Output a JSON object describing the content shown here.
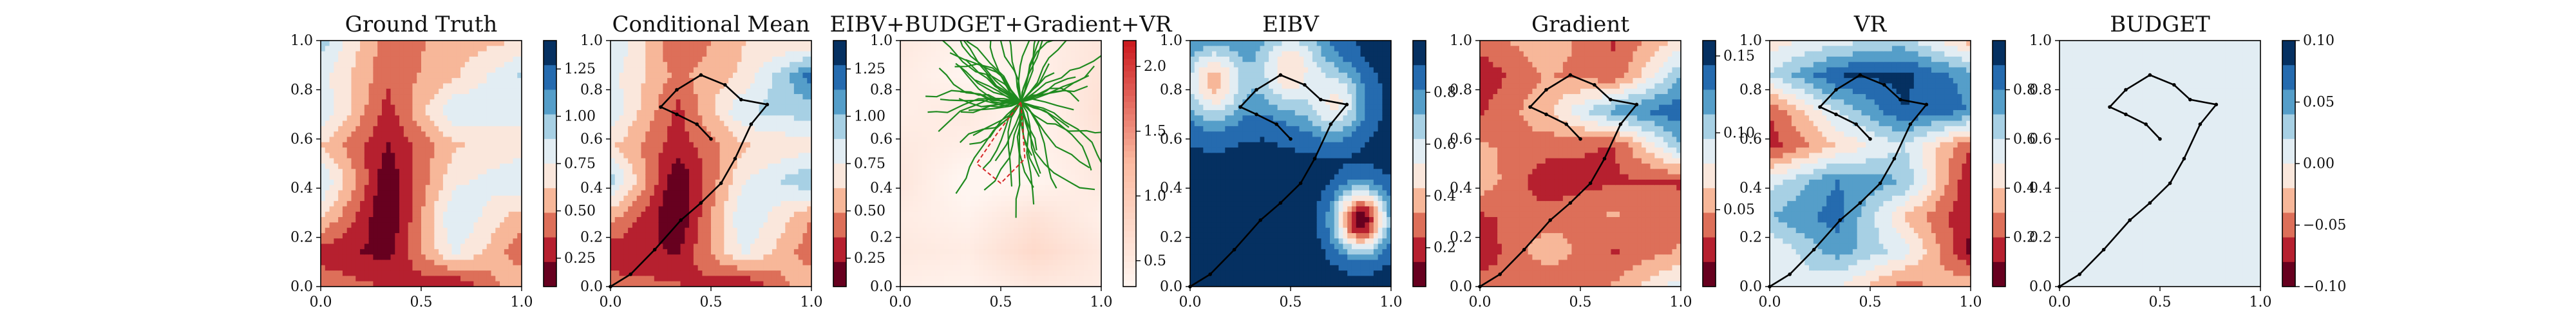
{
  "chart_data": [
    {
      "type": "heatmap",
      "title": "Ground Truth",
      "xlim": [
        0,
        1
      ],
      "ylim": [
        0,
        1
      ],
      "xticks": [
        "0.0",
        "0.5",
        "1.0"
      ],
      "yticks": [
        "0.0",
        "0.2",
        "0.4",
        "0.6",
        "0.8",
        "1.0"
      ],
      "colorbar": {
        "min": 0.1,
        "max": 1.4,
        "ticks": [
          "0.25",
          "0.50",
          "0.75",
          "1.00",
          "1.25"
        ],
        "tick_values": [
          0.25,
          0.5,
          0.75,
          1.0,
          1.25
        ]
      },
      "colormap": "RdBu",
      "field": [
        [
          0.95,
          0.4,
          0.55,
          0.62
        ],
        [
          0.8,
          0.4,
          0.6,
          0.9
        ],
        [
          0.88,
          0.3,
          0.86,
          0.8
        ],
        [
          0.62,
          0.22,
          0.6,
          0.7
        ],
        [
          0.9,
          0.12,
          0.72,
          0.86
        ],
        [
          0.65,
          0.09,
          0.88,
          0.55
        ],
        [
          0.3,
          0.18,
          0.78,
          0.4
        ],
        [
          0.45,
          0.35,
          0.22,
          0.62
        ]
      ],
      "path": []
    },
    {
      "type": "heatmap",
      "title": "Conditional Mean",
      "xlim": [
        0,
        1
      ],
      "ylim": [
        0,
        1
      ],
      "xticks": [
        "0.0",
        "0.5",
        "1.0"
      ],
      "yticks": [
        "0.0",
        "0.2",
        "0.4",
        "0.6",
        "0.8",
        "1.0"
      ],
      "colorbar": {
        "min": 0.1,
        "max": 1.4,
        "ticks": [
          "0.25",
          "0.50",
          "0.75",
          "1.00",
          "1.25"
        ],
        "tick_values": [
          0.25,
          0.5,
          0.75,
          1.0,
          1.25
        ]
      },
      "colormap": "RdBu",
      "field": [
        [
          0.9,
          0.35,
          0.62,
          0.6
        ],
        [
          0.8,
          0.45,
          0.65,
          1.2
        ],
        [
          0.85,
          0.32,
          0.88,
          0.95
        ],
        [
          0.65,
          0.28,
          0.6,
          0.7
        ],
        [
          0.95,
          0.1,
          0.75,
          1.0
        ],
        [
          0.55,
          0.09,
          0.88,
          0.5
        ],
        [
          0.28,
          0.22,
          0.78,
          0.4
        ],
        [
          0.42,
          0.38,
          0.22,
          0.62
        ]
      ],
      "path": [
        [
          0.0,
          0.0
        ],
        [
          0.1,
          0.05
        ],
        [
          0.22,
          0.15
        ],
        [
          0.35,
          0.27
        ],
        [
          0.45,
          0.34
        ],
        [
          0.55,
          0.42
        ],
        [
          0.62,
          0.52
        ],
        [
          0.7,
          0.66
        ],
        [
          0.78,
          0.74
        ],
        [
          0.65,
          0.76
        ],
        [
          0.57,
          0.82
        ],
        [
          0.45,
          0.86
        ],
        [
          0.33,
          0.8
        ],
        [
          0.25,
          0.73
        ],
        [
          0.33,
          0.7
        ],
        [
          0.43,
          0.66
        ],
        [
          0.5,
          0.6
        ]
      ]
    },
    {
      "type": "heatmap",
      "title": "EIBV+BUDGET+Gradient+VR",
      "xlim": [
        0,
        1
      ],
      "ylim": [
        0,
        1
      ],
      "xticks": [
        "0.0",
        "0.5",
        "1.0"
      ],
      "yticks": [
        "0.0",
        "0.2",
        "0.4",
        "0.6",
        "0.8",
        "1.0"
      ],
      "colorbar": {
        "min": 0.3,
        "max": 2.2,
        "ticks": [
          "0.5",
          "1.0",
          "1.5",
          "2.0"
        ],
        "tick_values": [
          0.5,
          1.0,
          1.5,
          2.0
        ]
      },
      "colormap": "Reds",
      "field": [
        [
          0.5,
          0.35,
          0.4,
          0.55
        ],
        [
          0.45,
          0.3,
          0.38,
          0.6
        ],
        [
          0.4,
          0.5,
          0.3,
          0.65
        ],
        [
          0.5,
          0.4,
          0.35,
          0.55
        ],
        [
          0.55,
          0.25,
          0.3,
          0.5
        ],
        [
          0.45,
          0.35,
          0.6,
          0.4
        ],
        [
          0.5,
          0.45,
          0.75,
          0.5
        ],
        [
          0.4,
          0.35,
          0.5,
          0.45
        ]
      ],
      "tree_root": [
        0.6,
        0.75
      ],
      "tree_branches": 60,
      "path": []
    },
    {
      "type": "heatmap",
      "title": "EIBV",
      "xlim": [
        0,
        1
      ],
      "ylim": [
        0,
        1
      ],
      "xticks": [
        "0.0",
        "0.5",
        "1.0"
      ],
      "yticks": [
        "0.0",
        "0.2",
        "0.4",
        "0.6",
        "0.8",
        "1.0"
      ],
      "colorbar": {
        "min": 0.05,
        "max": 1.0,
        "ticks": [
          "0.2",
          "0.4",
          "0.6",
          "0.8"
        ],
        "tick_values": [
          0.2,
          0.4,
          0.6,
          0.8
        ]
      },
      "colormap": "RdBu",
      "field": [
        [
          0.93,
          0.93,
          0.93,
          0.93
        ],
        [
          0.93,
          0.93,
          0.93,
          0.93
        ],
        [
          0.93,
          0.93,
          0.93,
          0.93
        ],
        [
          0.93,
          0.93,
          0.93,
          0.93
        ],
        [
          0.93,
          0.93,
          0.93,
          0.93
        ],
        [
          0.93,
          0.93,
          0.93,
          0.93
        ],
        [
          0.93,
          0.93,
          0.93,
          0.93
        ],
        [
          0.93,
          0.93,
          0.93,
          0.93
        ]
      ],
      "blobs": [
        {
          "cx": 0.85,
          "cy": 0.27,
          "r": 0.12,
          "min": 0.08
        },
        {
          "cx": 0.12,
          "cy": 0.83,
          "r": 0.16,
          "min": 0.4
        },
        {
          "cx": 0.5,
          "cy": 0.88,
          "r": 0.18,
          "min": 0.45
        },
        {
          "cx": 0.72,
          "cy": 0.75,
          "r": 0.14,
          "min": 0.5
        }
      ],
      "path": [
        [
          0.0,
          0.0
        ],
        [
          0.1,
          0.05
        ],
        [
          0.22,
          0.15
        ],
        [
          0.35,
          0.27
        ],
        [
          0.45,
          0.34
        ],
        [
          0.55,
          0.42
        ],
        [
          0.62,
          0.52
        ],
        [
          0.7,
          0.66
        ],
        [
          0.78,
          0.74
        ],
        [
          0.65,
          0.76
        ],
        [
          0.57,
          0.82
        ],
        [
          0.45,
          0.86
        ],
        [
          0.33,
          0.8
        ],
        [
          0.25,
          0.73
        ],
        [
          0.33,
          0.7
        ],
        [
          0.43,
          0.66
        ],
        [
          0.5,
          0.6
        ]
      ]
    },
    {
      "type": "heatmap",
      "title": "Gradient",
      "xlim": [
        0,
        1
      ],
      "ylim": [
        0,
        1
      ],
      "xticks": [
        "0.0",
        "0.5",
        "1.0"
      ],
      "yticks": [
        "0.0",
        "0.2",
        "0.4",
        "0.6",
        "0.8",
        "1.0"
      ],
      "colorbar": {
        "min": 0.0,
        "max": 0.16,
        "ticks": [
          "0.05",
          "0.10",
          "0.15"
        ],
        "tick_values": [
          0.05,
          0.1,
          0.15
        ]
      },
      "colormap": "RdBu",
      "field": [
        [
          0.04,
          0.06,
          0.03,
          0.07
        ],
        [
          0.02,
          0.05,
          0.035,
          0.11
        ],
        [
          0.03,
          0.06,
          0.12,
          0.14
        ],
        [
          0.05,
          0.04,
          0.03,
          0.11
        ],
        [
          0.06,
          0.02,
          0.03,
          0.03
        ],
        [
          0.03,
          0.04,
          0.05,
          0.04
        ],
        [
          0.02,
          0.06,
          0.03,
          0.05
        ],
        [
          0.04,
          0.03,
          0.05,
          0.09
        ]
      ],
      "path": [
        [
          0.0,
          0.0
        ],
        [
          0.1,
          0.05
        ],
        [
          0.22,
          0.15
        ],
        [
          0.35,
          0.27
        ],
        [
          0.45,
          0.34
        ],
        [
          0.55,
          0.42
        ],
        [
          0.62,
          0.52
        ],
        [
          0.7,
          0.66
        ],
        [
          0.78,
          0.74
        ],
        [
          0.65,
          0.76
        ],
        [
          0.57,
          0.82
        ],
        [
          0.45,
          0.86
        ],
        [
          0.33,
          0.8
        ],
        [
          0.25,
          0.73
        ],
        [
          0.33,
          0.7
        ],
        [
          0.43,
          0.66
        ],
        [
          0.5,
          0.6
        ]
      ]
    },
    {
      "type": "heatmap",
      "title": "VR",
      "xlim": [
        0,
        1
      ],
      "ylim": [
        0,
        1
      ],
      "xticks": [
        "0.0",
        "0.5",
        "1.0"
      ],
      "yticks": [
        "0.0",
        "0.2",
        "0.4",
        "0.6",
        "0.8",
        "1.0"
      ],
      "colorbar": {
        "min": 0.0,
        "max": 1.0,
        "ticks": [
          "0.2",
          "0.4",
          "0.6",
          "0.8"
        ],
        "tick_values": [
          0.2,
          0.4,
          0.6,
          0.8
        ]
      },
      "colormap": "RdBu",
      "field": [
        [
          0.45,
          0.55,
          0.65,
          0.35
        ],
        [
          0.6,
          0.9,
          0.93,
          0.75
        ],
        [
          0.2,
          0.6,
          0.9,
          0.8
        ],
        [
          0.15,
          0.4,
          0.6,
          0.2
        ],
        [
          0.55,
          0.8,
          0.7,
          0.1
        ],
        [
          0.7,
          0.85,
          0.4,
          0.1
        ],
        [
          0.5,
          0.75,
          0.55,
          0.08
        ],
        [
          0.6,
          0.5,
          0.25,
          0.4
        ]
      ],
      "path": [
        [
          0.0,
          0.0
        ],
        [
          0.1,
          0.05
        ],
        [
          0.22,
          0.15
        ],
        [
          0.35,
          0.27
        ],
        [
          0.45,
          0.34
        ],
        [
          0.55,
          0.42
        ],
        [
          0.62,
          0.52
        ],
        [
          0.7,
          0.66
        ],
        [
          0.78,
          0.74
        ],
        [
          0.65,
          0.76
        ],
        [
          0.57,
          0.82
        ],
        [
          0.45,
          0.86
        ],
        [
          0.33,
          0.8
        ],
        [
          0.25,
          0.73
        ],
        [
          0.33,
          0.7
        ],
        [
          0.43,
          0.66
        ],
        [
          0.5,
          0.6
        ]
      ]
    },
    {
      "type": "heatmap",
      "title": "BUDGET",
      "xlim": [
        0,
        1
      ],
      "ylim": [
        0,
        1
      ],
      "xticks": [
        "0.0",
        "0.5",
        "1.0"
      ],
      "yticks": [
        "0.0",
        "0.2",
        "0.4",
        "0.6",
        "0.8",
        "1.0"
      ],
      "colorbar": {
        "min": -0.1,
        "max": 0.1,
        "ticks": [
          "0.10",
          "0.05",
          "0.00",
          "−0.05",
          "−0.10"
        ],
        "tick_values": [
          0.1,
          0.05,
          0.0,
          -0.05,
          -0.1
        ]
      },
      "colormap": "RdBu",
      "field": [
        [
          0.0,
          0.0,
          0.0,
          0.0
        ],
        [
          0.0,
          0.0,
          0.0,
          0.0
        ],
        [
          0.0,
          0.0,
          0.0,
          0.0
        ],
        [
          0.0,
          0.0,
          0.0,
          0.0
        ],
        [
          0.0,
          0.0,
          0.0,
          0.0
        ],
        [
          0.0,
          0.0,
          0.0,
          0.0
        ],
        [
          0.0,
          0.0,
          0.0,
          0.0
        ],
        [
          0.0,
          0.0,
          0.0,
          0.0
        ]
      ],
      "path": [
        [
          0.0,
          0.0
        ],
        [
          0.1,
          0.05
        ],
        [
          0.22,
          0.15
        ],
        [
          0.35,
          0.27
        ],
        [
          0.45,
          0.34
        ],
        [
          0.55,
          0.42
        ],
        [
          0.62,
          0.52
        ],
        [
          0.7,
          0.66
        ],
        [
          0.78,
          0.74
        ],
        [
          0.65,
          0.76
        ],
        [
          0.57,
          0.82
        ],
        [
          0.45,
          0.86
        ],
        [
          0.33,
          0.8
        ],
        [
          0.25,
          0.73
        ],
        [
          0.33,
          0.7
        ],
        [
          0.43,
          0.66
        ],
        [
          0.5,
          0.6
        ]
      ]
    }
  ]
}
